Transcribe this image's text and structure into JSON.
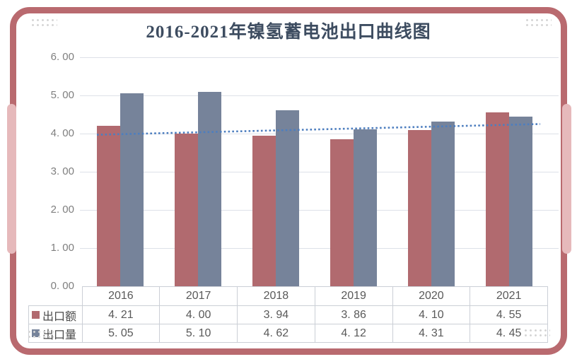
{
  "chart_data": {
    "type": "bar",
    "title": "2016-2021年镍氢蓄电池出口曲线图",
    "categories": [
      "2016",
      "2017",
      "2018",
      "2019",
      "2020",
      "2021"
    ],
    "series": [
      {
        "name": "出口额",
        "color": "#b16a6f",
        "values": [
          4.21,
          4.0,
          3.94,
          3.86,
          4.1,
          4.55
        ],
        "display": [
          "4. 21",
          "4. 00",
          "3. 94",
          "3. 86",
          "4. 10",
          "4. 55"
        ]
      },
      {
        "name": "出口量",
        "color": "#76839a",
        "values": [
          5.05,
          5.1,
          4.62,
          4.12,
          4.31,
          4.45
        ],
        "display": [
          "5. 05",
          "5. 10",
          "4. 62",
          "4. 12",
          "4. 31",
          "4. 45"
        ]
      }
    ],
    "y_axis": {
      "min": 0,
      "max": 6,
      "step": 1,
      "tick_labels": [
        "0. 00",
        "1. 00",
        "2. 00",
        "3. 00",
        "4. 00",
        "5. 00",
        "6. 00"
      ]
    },
    "trendline": {
      "type": "linear",
      "of_series": "出口额",
      "color": "#4d7ebf",
      "start_value": 3.97,
      "end_value": 4.25
    },
    "grid": true,
    "legend_position": "table-left"
  },
  "theme": {
    "frame_border": "#b96a6f",
    "side_accent": "#e6b9bb",
    "corner_dots": "#d5d5d5",
    "title_color": "#3d4c60",
    "gridline_color": "#dde1e8",
    "axis_label_color": "#7f7f7f",
    "table_border": "#cbcfd6",
    "table_text": "#595959"
  }
}
